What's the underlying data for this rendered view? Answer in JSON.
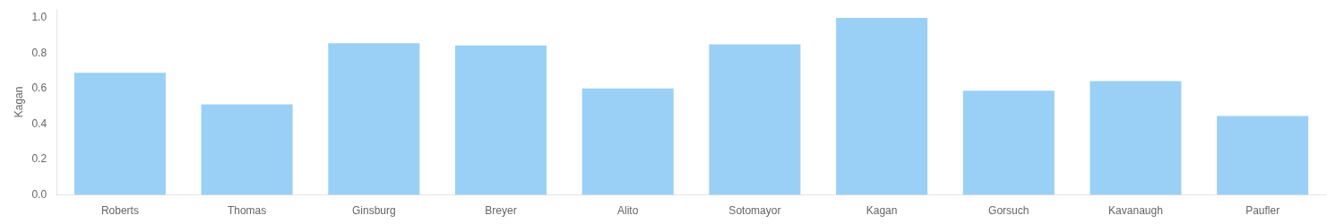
{
  "chart_data": {
    "type": "bar",
    "categories": [
      "Roberts",
      "Thomas",
      "Ginsburg",
      "Breyer",
      "Alito",
      "Sotomayor",
      "Kagan",
      "Gorsuch",
      "Kavanaugh",
      "Paufler"
    ],
    "values": [
      0.6904761904761905,
      0.5119047619047619,
      0.8571428571428571,
      0.8452380952380952,
      0.6011904761904762,
      0.8511904761904762,
      1.0,
      0.5892857142857143,
      0.6428571428571429,
      0.44642857142857145
    ],
    "ylabel": "Kagan",
    "ylim": [
      0.0,
      1.05
    ],
    "yticks": [
      {
        "value": 0.0,
        "label": "0.0"
      },
      0.2,
      0.4,
      0.6,
      0.8,
      {
        "value": 1.0,
        "label": "1.0"
      }
    ],
    "grid": false
  }
}
